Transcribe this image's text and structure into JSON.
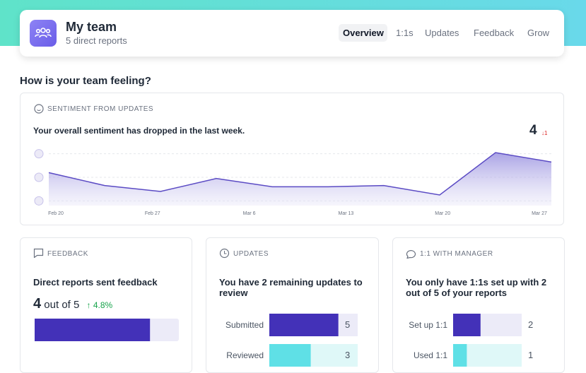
{
  "header": {
    "title": "My team",
    "subtitle": "5 direct reports",
    "nav": [
      "Overview",
      "1:1s",
      "Updates",
      "Feedback",
      "Grow"
    ]
  },
  "question": "How is your team feeling?",
  "sentiment": {
    "type": "area",
    "title": "SENTIMENT FROM UPDATES",
    "message": "Your overall sentiment has dropped in the last week.",
    "score": "4",
    "change": "↓1",
    "x_labels": [
      "Feb 20",
      "Feb 27",
      "Mar 6",
      "Mar 13",
      "Mar 20",
      "Mar 27"
    ],
    "values": [
      3.4,
      2.3,
      1.8,
      2.9,
      2.2,
      2.2,
      2.3,
      1.5,
      5.1,
      4.3
    ],
    "color": "#5b4bc4",
    "ylim": [
      0.6,
      5.4
    ],
    "yticks": [
      1,
      3,
      5
    ],
    "grid": true
  },
  "feedback": {
    "title": "FEEDBACK",
    "heading": "Direct reports sent feedback",
    "sent": 4,
    "out_of": "out of",
    "total": 5,
    "change": "↑ 4.8%"
  },
  "updates": {
    "title": "UPDATES",
    "heading": "You have 2 remaining updates to review",
    "categories": [
      "Submitted",
      "Reviewed"
    ],
    "values": [
      5,
      3
    ],
    "colors": [
      "#4331b8",
      "#5fe0e6"
    ]
  },
  "one_on_one": {
    "title": "1:1 WITH MANAGER",
    "heading": "You only have 1:1s set up with 2 out of 5 of your reports",
    "categories": [
      "Set up 1:1",
      "Used 1:1"
    ],
    "values": [
      2,
      1
    ],
    "colors": [
      "#4331b8",
      "#5fe0e6"
    ]
  }
}
